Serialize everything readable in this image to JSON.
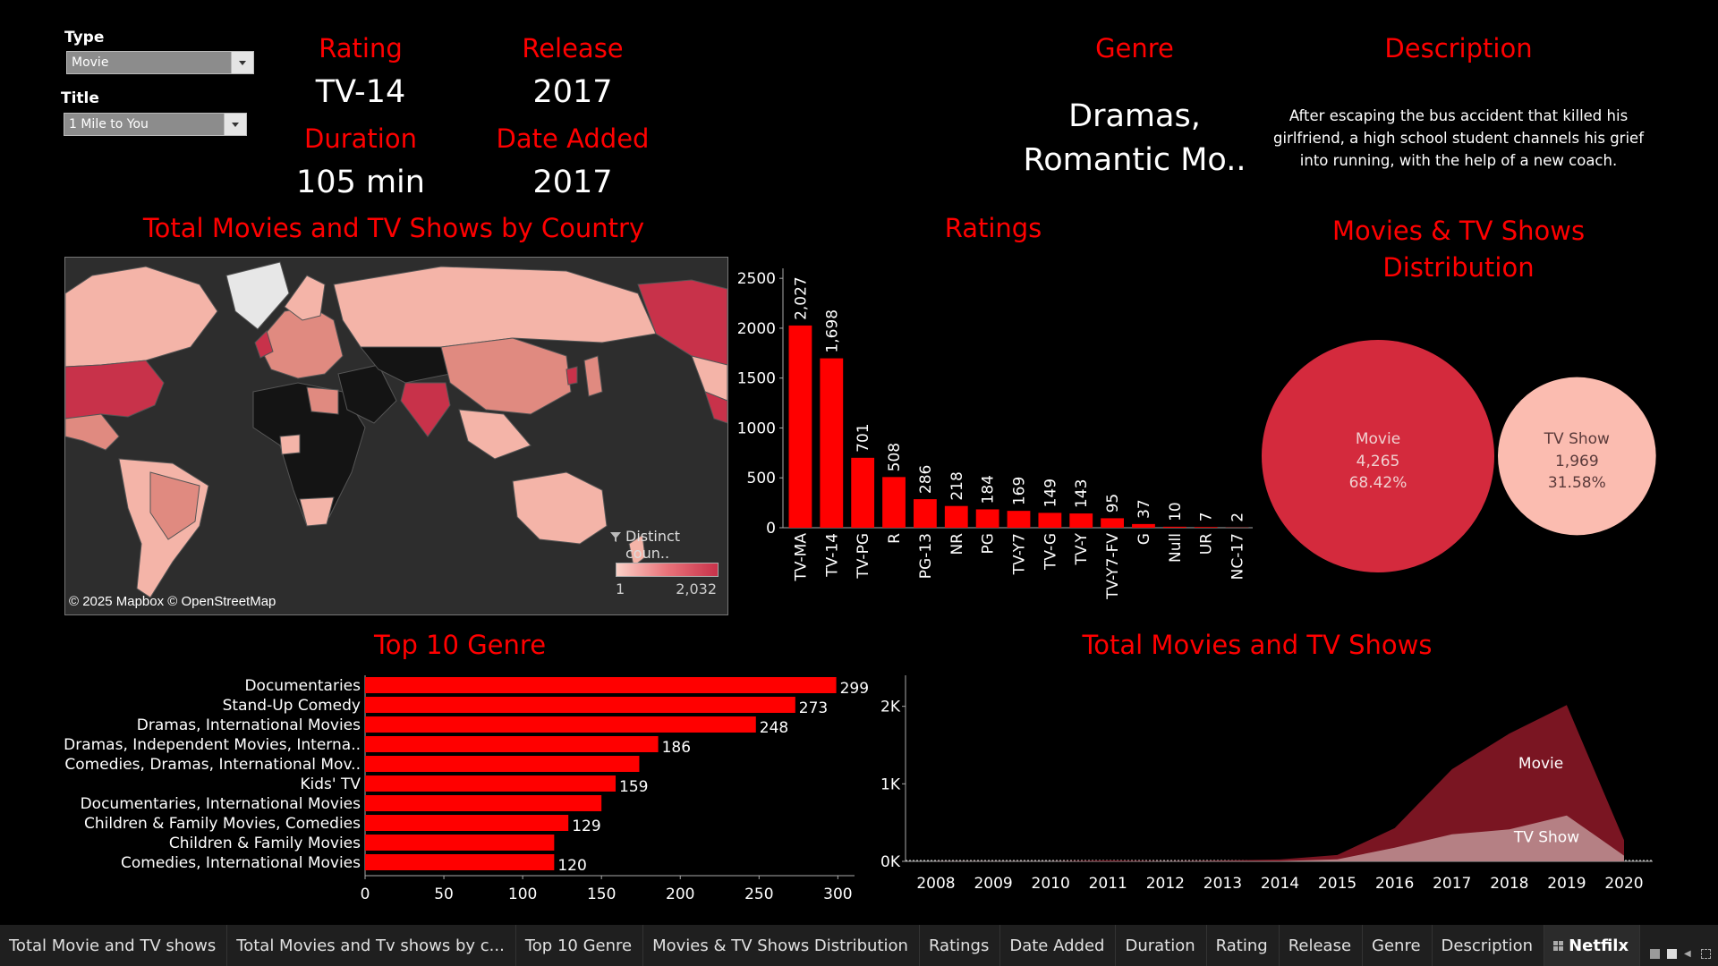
{
  "filters": {
    "type_label": "Type",
    "type_value": "Movie",
    "title_label": "Title",
    "title_value": "1 Mile to You"
  },
  "kpis": {
    "rating_label": "Rating",
    "rating_value": "TV-14",
    "release_label": "Release",
    "release_value": "2017",
    "duration_label": "Duration",
    "duration_value": "105 min",
    "date_added_label": "Date Added",
    "date_added_value": "2017",
    "genre_label": "Genre",
    "genre_value_line1": "Dramas,",
    "genre_value_line2": "Romantic Mo..",
    "description_label": "Description",
    "description_line1": "After escaping the bus accident that killed his",
    "description_line2": "girlfriend, a high school student channels his grief",
    "description_line3": "into running, with the help of a new coach."
  },
  "map": {
    "title": "Total Movies and TV Shows by Country",
    "legend_title": "Distinct coun..",
    "legend_min": "1",
    "legend_max": "2,032",
    "attribution": "© 2025 Mapbox © OpenStreetMap",
    "colors": {
      "ocean": "#2d2d2d",
      "no_data": "#141414",
      "low": "#f4b4a8",
      "mid": "#e08a80",
      "high": "#c8324a",
      "border": "#555555"
    }
  },
  "chart_data": [
    {
      "type": "bar",
      "id": "ratings",
      "title": "Ratings",
      "categories": [
        "TV-MA",
        "TV-14",
        "TV-PG",
        "R",
        "PG-13",
        "NR",
        "PG",
        "TV-Y7",
        "TV-G",
        "TV-Y",
        "TV-Y7-FV",
        "G",
        "Null",
        "UR",
        "NC-17"
      ],
      "values": [
        2027,
        1698,
        701,
        508,
        286,
        218,
        184,
        169,
        149,
        143,
        95,
        37,
        10,
        7,
        2
      ],
      "value_labels": [
        "2,027",
        "1,698",
        "701",
        "508",
        "286",
        "218",
        "184",
        "169",
        "149",
        "143",
        "95",
        "37",
        "10",
        "7",
        "2"
      ],
      "yticks": [
        "0",
        "500",
        "1000",
        "1500",
        "2000",
        "2500"
      ],
      "ylim": [
        0,
        2600
      ],
      "color": "#ff0000"
    },
    {
      "type": "pie",
      "id": "distribution",
      "title_line1": "Movies & TV Shows",
      "title_line2": "Distribution",
      "categories": [
        "Movie",
        "TV Show"
      ],
      "values": [
        4265,
        1969
      ],
      "value_labels": [
        "4,265",
        "1,969"
      ],
      "percent_labels": [
        "68.42%",
        "31.58%"
      ],
      "colors": [
        "#d42a3d",
        "#fbbcb0"
      ]
    },
    {
      "type": "bar",
      "id": "top_genre",
      "orientation": "horizontal",
      "title": "Top 10 Genre",
      "categories": [
        "Documentaries",
        "Stand-Up Comedy",
        "Dramas, International Movies",
        "Dramas, Independent Movies, Interna..",
        "Comedies, Dramas, International Mov..",
        "Kids' TV",
        "Documentaries, International Movies",
        "Children & Family Movies, Comedies",
        "Children & Family Movies",
        "Comedies, International Movies"
      ],
      "values": [
        299,
        273,
        248,
        186,
        174,
        159,
        150,
        129,
        120,
        120
      ],
      "value_labels": [
        "299",
        "273",
        "248",
        "186",
        "",
        "159",
        "",
        "129",
        "",
        "120"
      ],
      "xticks": [
        "0",
        "50",
        "100",
        "150",
        "200",
        "250",
        "300"
      ],
      "xlim": [
        0,
        335
      ],
      "color": "#ff0000"
    },
    {
      "type": "area",
      "id": "total_over_time",
      "title": "Total Movies and TV Shows",
      "x": [
        "2008",
        "2009",
        "2010",
        "2011",
        "2012",
        "2013",
        "2014",
        "2015",
        "2016",
        "2017",
        "2018",
        "2019",
        "2020"
      ],
      "series": [
        {
          "name": "Movie",
          "values": [
            1,
            2,
            1,
            13,
            3,
            6,
            19,
            56,
            253,
            839,
            1237,
            1424,
            198
          ],
          "color": "#7a1522"
        },
        {
          "name": "TV Show",
          "values": [
            1,
            0,
            0,
            0,
            0,
            5,
            5,
            26,
            176,
            349,
            412,
            592,
            74
          ],
          "color": "#c9a4a6"
        }
      ],
      "stacked": true,
      "yticks": [
        "0K",
        "1K",
        "2K"
      ],
      "ylim": [
        0,
        2400
      ]
    }
  ],
  "tabs": {
    "items": [
      "Total Movie and TV shows",
      "Total Movies and Tv shows by c...",
      "Top 10 Genre",
      "Movies & TV Shows Distribution",
      "Ratings",
      "Date Added",
      "Duration",
      "Rating",
      "Release",
      "Genre",
      "Description"
    ],
    "active": "Netfilx"
  }
}
